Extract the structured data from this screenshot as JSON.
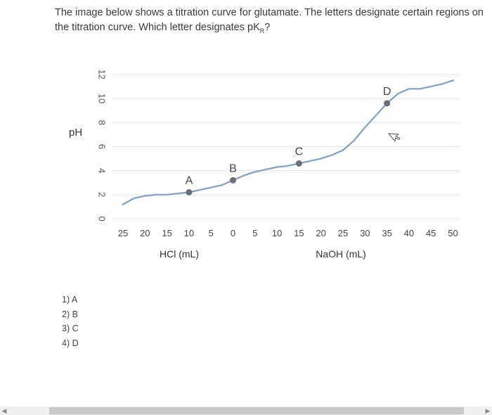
{
  "question": {
    "text": "The image below shows a titration curve for glutamate. The letters designate certain regions on the titration curve. Which letter designates pK",
    "subscript": "R",
    "suffix": "?"
  },
  "answers": [
    {
      "number": "1)",
      "text": "A"
    },
    {
      "number": "2)",
      "text": "B"
    },
    {
      "number": "3)",
      "text": "C"
    },
    {
      "number": "4)",
      "text": "D"
    }
  ],
  "chart_data": {
    "type": "line",
    "ylabel": "pH",
    "ylim": [
      0,
      12
    ],
    "yticks": [
      "0",
      "2",
      "4",
      "6",
      "8",
      "10",
      "12"
    ],
    "xticks": [
      "25",
      "20",
      "15",
      "10",
      "5",
      "0",
      "5",
      "10",
      "15",
      "20",
      "25",
      "30",
      "35",
      "40",
      "45",
      "50"
    ],
    "xlabel_left": "HCl (mL)",
    "xlabel_right": "NaOH (mL)",
    "grid": true,
    "x_note": "x positions expressed as signed mL: negative = HCl added, positive = NaOH added",
    "series": [
      {
        "points": [
          [
            -25,
            1.2
          ],
          [
            -22.5,
            1.7
          ],
          [
            -20,
            1.9
          ],
          [
            -17.5,
            2.0
          ],
          [
            -15,
            2.0
          ],
          [
            -12.5,
            2.1
          ],
          [
            -10,
            2.2
          ],
          [
            -7.5,
            2.4
          ],
          [
            -5,
            2.6
          ],
          [
            -2.5,
            2.8
          ],
          [
            0,
            3.2
          ],
          [
            2.5,
            3.6
          ],
          [
            5,
            3.9
          ],
          [
            7.5,
            4.1
          ],
          [
            10,
            4.3
          ],
          [
            12.5,
            4.4
          ],
          [
            15,
            4.6
          ],
          [
            17.5,
            4.8
          ],
          [
            20,
            5.0
          ],
          [
            22.5,
            5.3
          ],
          [
            25,
            5.7
          ],
          [
            27.5,
            6.5
          ],
          [
            30,
            7.6
          ],
          [
            32.5,
            8.6
          ],
          [
            35,
            9.6
          ],
          [
            37.5,
            10.4
          ],
          [
            40,
            10.8
          ],
          [
            42.5,
            10.8
          ],
          [
            45,
            11.0
          ],
          [
            47.5,
            11.2
          ],
          [
            50,
            11.5
          ]
        ]
      }
    ],
    "annotations": [
      {
        "label": "A",
        "x": -10,
        "y": 2.2
      },
      {
        "label": "B",
        "x": 0,
        "y": 3.2
      },
      {
        "label": "C",
        "x": 15,
        "y": 4.6
      },
      {
        "label": "D",
        "x": 35,
        "y": 9.6
      }
    ],
    "colors": {
      "line": "#7da0c4",
      "marker": "#6a6f78",
      "grid": "#e6e6e6"
    }
  }
}
